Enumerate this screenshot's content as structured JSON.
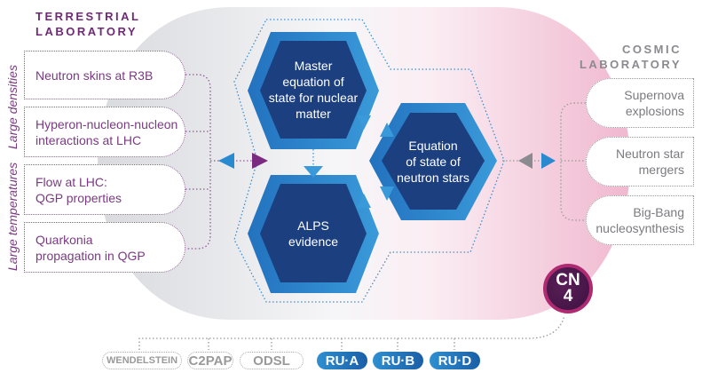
{
  "terrestrial": {
    "title_line1": "TERRESTRIAL",
    "title_line2": "LABORATORY",
    "axis_labels": [
      "Large densities",
      "Large temperatures"
    ],
    "items": [
      {
        "line1": "Neutron skins at R3B",
        "line2": ""
      },
      {
        "line1": "Hyperon-nucleon-nucleon",
        "line2": "interactions at LHC"
      },
      {
        "line1": "Flow at LHC:",
        "line2": "QGP properties"
      },
      {
        "line1": "Quarkonia",
        "line2": "propagation in QGP"
      }
    ]
  },
  "cosmic": {
    "title_line1": "COSMIC",
    "title_line2": "LABORATORY",
    "items": [
      {
        "line1": "Supernova",
        "line2": "explosions"
      },
      {
        "line1": "Neutron star",
        "line2": "mergers"
      },
      {
        "line1": "Big-Bang",
        "line2": "nucleosynthesis"
      }
    ]
  },
  "hexagons": {
    "master": [
      "Master",
      "equation of",
      "state for nuclear",
      "matter"
    ],
    "neutron_stars": [
      "Equation",
      "of state of",
      "neutron stars"
    ],
    "alps": [
      "ALPS",
      "evidence"
    ]
  },
  "badge": {
    "line1": "CN",
    "line2": "4"
  },
  "partners": {
    "outlined": [
      "WENDELSTEIN",
      "C2PAP",
      "ODSL"
    ],
    "filled": [
      "RU·A",
      "RU·B",
      "RU·D"
    ]
  },
  "colors": {
    "purple": "#6e2a74",
    "dark_blue": "#1c3f7f",
    "mid_blue": "#2a7fc8",
    "light_blue": "#3a9ad9",
    "grey": "#8a8a8f",
    "pink": "#f3c6d8",
    "magenta": "#b02a72"
  }
}
